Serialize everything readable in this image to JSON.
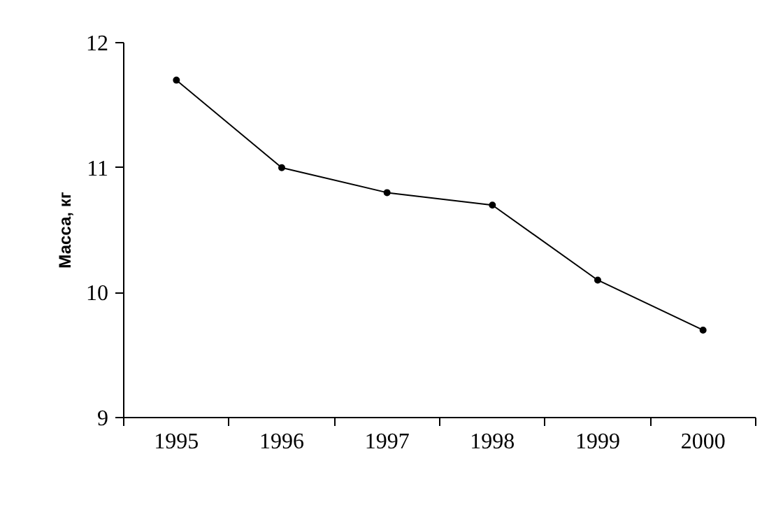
{
  "chart_data": {
    "type": "line",
    "ylabel": "Масса, кг",
    "categories": [
      "1995",
      "1996",
      "1997",
      "1998",
      "1999",
      "2000"
    ],
    "series": [
      {
        "color": "#000000",
        "values": [
          11.7,
          11.0,
          10.8,
          10.7,
          10.1,
          9.7
        ]
      }
    ],
    "ylim": [
      9,
      12
    ],
    "yticks": [
      9,
      10,
      11,
      12
    ],
    "grid": false,
    "marker": "circle",
    "line_style": "solid"
  }
}
